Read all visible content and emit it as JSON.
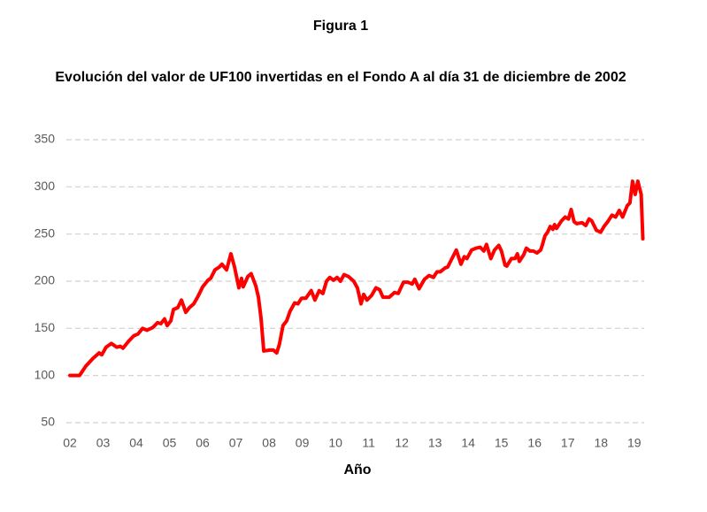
{
  "chart_data": {
    "type": "line",
    "title": "Figura 1",
    "subtitle": "Evolución del valor de UF100 invertidas en el Fondo A al día 31 de diciembre de 2002",
    "x_label": "Año",
    "grid": true,
    "xlim": [
      2002,
      2019.3
    ],
    "ylim": [
      50,
      350
    ],
    "yticks": [
      50,
      100,
      150,
      200,
      250,
      300,
      350
    ],
    "xticks": [
      {
        "value": 2002,
        "label": "02"
      },
      {
        "value": 2003,
        "label": "03"
      },
      {
        "value": 2004,
        "label": "04"
      },
      {
        "value": 2005,
        "label": "05"
      },
      {
        "value": 2006,
        "label": "06"
      },
      {
        "value": 2007,
        "label": "07"
      },
      {
        "value": 2008,
        "label": "08"
      },
      {
        "value": 2009,
        "label": "09"
      },
      {
        "value": 2010,
        "label": "10"
      },
      {
        "value": 2011,
        "label": "11"
      },
      {
        "value": 2012,
        "label": "12"
      },
      {
        "value": 2013,
        "label": "13"
      },
      {
        "value": 2014,
        "label": "14"
      },
      {
        "value": 2015,
        "label": "15"
      },
      {
        "value": 2016,
        "label": "16"
      },
      {
        "value": 2017,
        "label": "17"
      },
      {
        "value": 2018,
        "label": "18"
      },
      {
        "value": 2019,
        "label": "19"
      }
    ],
    "x": [
      2002.0,
      2002.29,
      2002.48,
      2002.69,
      2002.88,
      2002.96,
      2003.09,
      2003.25,
      2003.41,
      2003.52,
      2003.6,
      2003.76,
      2003.92,
      2004.05,
      2004.19,
      2004.32,
      2004.5,
      2004.64,
      2004.74,
      2004.85,
      2004.93,
      2005.04,
      2005.12,
      2005.25,
      2005.36,
      2005.49,
      2005.6,
      2005.73,
      2005.86,
      2006.0,
      2006.16,
      2006.24,
      2006.37,
      2006.5,
      2006.58,
      2006.72,
      2006.85,
      2006.96,
      2007.09,
      2007.17,
      2007.22,
      2007.36,
      2007.46,
      2007.6,
      2007.68,
      2007.76,
      2007.84,
      2008.02,
      2008.13,
      2008.23,
      2008.31,
      2008.42,
      2008.53,
      2008.63,
      2008.77,
      2008.87,
      2008.98,
      2009.11,
      2009.27,
      2009.38,
      2009.51,
      2009.62,
      2009.73,
      2009.83,
      2009.94,
      2010.05,
      2010.15,
      2010.26,
      2010.39,
      2010.55,
      2010.66,
      2010.77,
      2010.85,
      2010.95,
      2011.09,
      2011.22,
      2011.33,
      2011.43,
      2011.62,
      2011.78,
      2011.89,
      2012.05,
      2012.18,
      2012.31,
      2012.39,
      2012.52,
      2012.68,
      2012.82,
      2012.95,
      2013.06,
      2013.16,
      2013.3,
      2013.38,
      2013.51,
      2013.64,
      2013.78,
      2013.88,
      2013.96,
      2014.1,
      2014.23,
      2014.36,
      2014.47,
      2014.55,
      2014.68,
      2014.79,
      2014.92,
      2015.0,
      2015.11,
      2015.16,
      2015.3,
      2015.41,
      2015.48,
      2015.54,
      2015.67,
      2015.75,
      2015.86,
      2015.96,
      2016.07,
      2016.18,
      2016.23,
      2016.31,
      2016.39,
      2016.47,
      2016.55,
      2016.6,
      2016.66,
      2016.81,
      2016.92,
      2017.02,
      2017.1,
      2017.19,
      2017.27,
      2017.43,
      2017.54,
      2017.64,
      2017.72,
      2017.86,
      2017.99,
      2018.09,
      2018.2,
      2018.33,
      2018.44,
      2018.55,
      2018.65,
      2018.79,
      2018.87,
      2018.95,
      2019.03,
      2019.11,
      2019.21,
      2019.26
    ],
    "series": [
      {
        "color": "#ff0000",
        "values": [
          100,
          100,
          110,
          118,
          124,
          122,
          130,
          134,
          130,
          131,
          129,
          136,
          142,
          144,
          150,
          148,
          151,
          156,
          155,
          160,
          153,
          158,
          170,
          172,
          180,
          167,
          172,
          176,
          184,
          194,
          201,
          203,
          212,
          215,
          218,
          212,
          229,
          215,
          193,
          203,
          194,
          205,
          208,
          195,
          183,
          160,
          126,
          127,
          127,
          124,
          133,
          153,
          158,
          168,
          177,
          176,
          182,
          182,
          190,
          180,
          190,
          187,
          200,
          204,
          201,
          204,
          200,
          207,
          205,
          200,
          193,
          176,
          186,
          180,
          185,
          193,
          191,
          183,
          183,
          188,
          187,
          199,
          199,
          197,
          202,
          192,
          202,
          206,
          204,
          210,
          210,
          214,
          215,
          224,
          233,
          218,
          226,
          224,
          233,
          235,
          236,
          232,
          239,
          224,
          233,
          238,
          232,
          217,
          216,
          224,
          224,
          229,
          221,
          228,
          235,
          232,
          232,
          230,
          233,
          238,
          248,
          252,
          258,
          255,
          260,
          256,
          264,
          268,
          266,
          276,
          263,
          261,
          262,
          259,
          266,
          264,
          254,
          252,
          258,
          263,
          270,
          268,
          275,
          268,
          280,
          283,
          306,
          292,
          306,
          292,
          245
        ]
      }
    ]
  }
}
